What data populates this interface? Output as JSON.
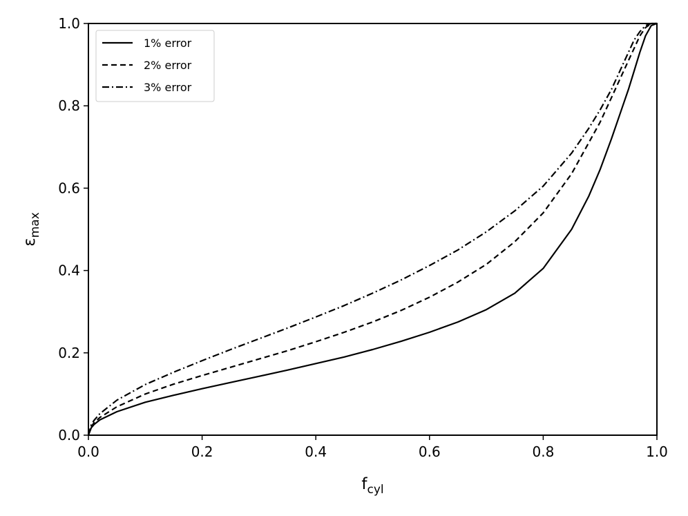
{
  "chart_data": {
    "type": "line",
    "xlabel": {
      "main": "f",
      "sub": "cyl"
    },
    "ylabel": {
      "main": "ε",
      "sub": "max"
    },
    "xlim": [
      0.0,
      1.0
    ],
    "ylim": [
      0.0,
      1.0
    ],
    "xticks": [
      "0.0",
      "0.2",
      "0.4",
      "0.6",
      "0.8",
      "1.0"
    ],
    "yticks": [
      "0.0",
      "0.2",
      "0.4",
      "0.6",
      "0.8",
      "1.0"
    ],
    "grid": false,
    "legend_position": "top-left",
    "x": [
      0.0,
      0.005,
      0.01,
      0.02,
      0.05,
      0.1,
      0.15,
      0.2,
      0.25,
      0.3,
      0.35,
      0.4,
      0.45,
      0.5,
      0.55,
      0.6,
      0.65,
      0.7,
      0.75,
      0.8,
      0.85,
      0.88,
      0.9,
      0.92,
      0.94,
      0.95,
      0.96,
      0.97,
      0.98,
      0.99,
      1.0
    ],
    "series": [
      {
        "name": "1% error",
        "style": "solid",
        "values": [
          0.0,
          0.018,
          0.026,
          0.037,
          0.057,
          0.08,
          0.097,
          0.113,
          0.128,
          0.143,
          0.158,
          0.174,
          0.19,
          0.208,
          0.228,
          0.25,
          0.275,
          0.305,
          0.345,
          0.405,
          0.5,
          0.58,
          0.645,
          0.72,
          0.8,
          0.84,
          0.885,
          0.93,
          0.97,
          0.995,
          1.0
        ]
      },
      {
        "name": "2% error",
        "style": "dashed",
        "values": [
          0.0,
          0.021,
          0.03,
          0.043,
          0.069,
          0.1,
          0.124,
          0.145,
          0.165,
          0.185,
          0.205,
          0.227,
          0.25,
          0.275,
          0.303,
          0.335,
          0.372,
          0.415,
          0.47,
          0.54,
          0.635,
          0.71,
          0.76,
          0.82,
          0.88,
          0.91,
          0.94,
          0.97,
          0.99,
          1.0,
          1.0
        ]
      },
      {
        "name": "3% error",
        "style": "dashdot",
        "values": [
          0.0,
          0.025,
          0.036,
          0.052,
          0.085,
          0.123,
          0.153,
          0.181,
          0.208,
          0.234,
          0.26,
          0.287,
          0.315,
          0.345,
          0.377,
          0.412,
          0.45,
          0.494,
          0.545,
          0.605,
          0.685,
          0.745,
          0.79,
          0.84,
          0.9,
          0.93,
          0.96,
          0.98,
          0.995,
          1.0,
          1.0
        ]
      }
    ]
  }
}
